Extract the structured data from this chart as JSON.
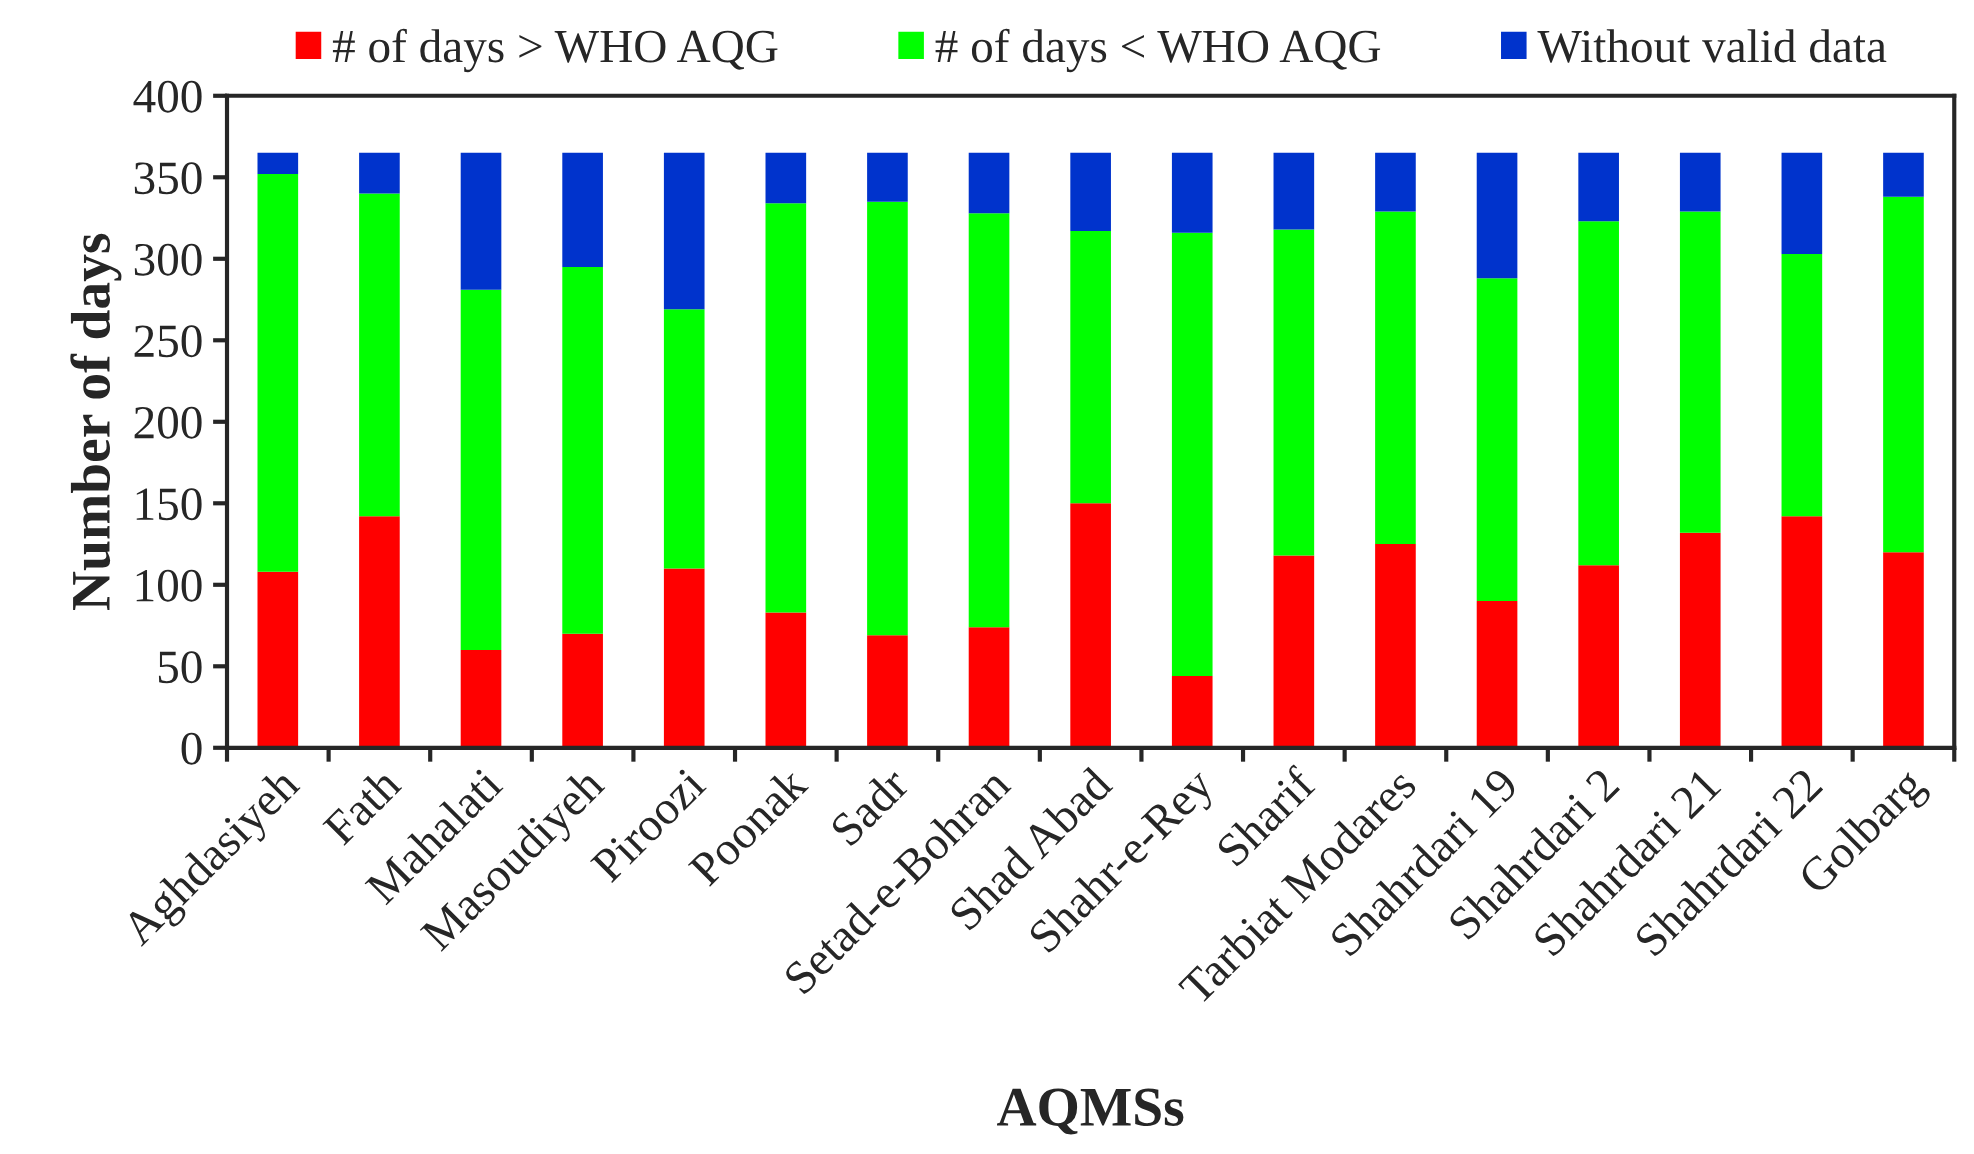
{
  "chart_data": {
    "type": "bar",
    "stacked": true,
    "xlabel": "AQMSs",
    "ylabel": "Number of days",
    "categories": [
      "Aghdasiyeh",
      "Fath",
      "Mahalati",
      "Masoudiyeh",
      "Piroozi",
      "Poonak",
      "Sadr",
      "Setad-e-Bohran",
      "Shad Abad",
      "Shahr-e-Rey",
      "Sharif",
      "Tarbiat Modares",
      "Shahrdari 19",
      "Shahrdari 2",
      "Shahrdari 21",
      "Shahrdari 22",
      "Golbarg"
    ],
    "series": [
      {
        "name": "# of days > WHO AQG",
        "color": "#ff0000",
        "values": [
          108,
          142,
          60,
          70,
          110,
          83,
          69,
          74,
          150,
          44,
          118,
          125,
          90,
          112,
          132,
          142,
          120
        ]
      },
      {
        "name": "# of days < WHO AQG",
        "color": "#00ff00",
        "values": [
          244,
          198,
          221,
          225,
          159,
          251,
          266,
          254,
          167,
          272,
          200,
          204,
          198,
          211,
          197,
          161,
          218
        ]
      },
      {
        "name": "Without valid data",
        "color": "#0033cc",
        "values": [
          13,
          25,
          84,
          70,
          96,
          31,
          30,
          37,
          48,
          49,
          47,
          36,
          77,
          42,
          36,
          62,
          27
        ]
      }
    ],
    "ylim": [
      0,
      400
    ],
    "yticks": [
      0,
      50,
      100,
      150,
      200,
      250,
      300,
      350,
      400
    ],
    "grid": false,
    "legend": "top"
  }
}
